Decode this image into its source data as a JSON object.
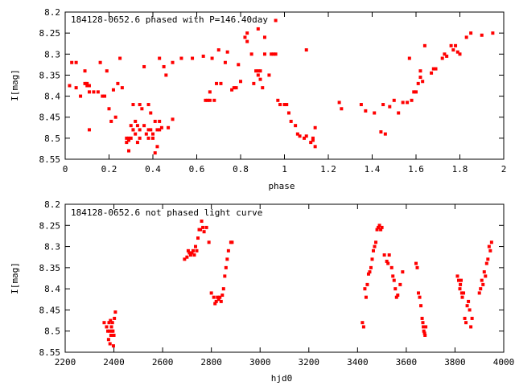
{
  "chart_data": [
    {
      "type": "scatter",
      "title": "184128-0652.6 phased with P=146.40day",
      "xlabel": "phase",
      "ylabel": "I[mag]",
      "xlim": [
        0,
        2
      ],
      "ylim": [
        8.55,
        8.2
      ],
      "y_inverted": true,
      "grid": false,
      "marker_color": "#ff0000",
      "xticks": [
        "0",
        "0.2",
        "0.4",
        "0.6",
        "0.8",
        "1",
        "1.2",
        "1.4",
        "1.6",
        "1.8",
        "2"
      ],
      "yticks": [
        "8.2",
        "8.25",
        "8.3",
        "8.35",
        "8.4",
        "8.45",
        "8.5",
        "8.55"
      ],
      "points": [
        [
          0.02,
          8.375
        ],
        [
          0.03,
          8.32
        ],
        [
          0.05,
          8.38
        ],
        [
          0.05,
          8.32
        ],
        [
          0.07,
          8.4
        ],
        [
          0.09,
          8.34
        ],
        [
          0.09,
          8.37
        ],
        [
          0.1,
          8.375
        ],
        [
          0.1,
          8.37
        ],
        [
          0.11,
          8.39
        ],
        [
          0.11,
          8.375
        ],
        [
          0.11,
          8.48
        ],
        [
          0.13,
          8.39
        ],
        [
          0.15,
          8.39
        ],
        [
          0.16,
          8.32
        ],
        [
          0.17,
          8.4
        ],
        [
          0.18,
          8.4
        ],
        [
          0.19,
          8.34
        ],
        [
          0.2,
          8.43
        ],
        [
          0.21,
          8.46
        ],
        [
          0.22,
          8.385
        ],
        [
          0.23,
          8.45
        ],
        [
          0.24,
          8.37
        ],
        [
          0.25,
          8.31
        ],
        [
          0.26,
          8.38
        ],
        [
          0.28,
          8.5
        ],
        [
          0.28,
          8.51
        ],
        [
          0.29,
          8.53
        ],
        [
          0.29,
          8.5
        ],
        [
          0.29,
          8.505
        ],
        [
          0.3,
          8.5
        ],
        [
          0.3,
          8.47
        ],
        [
          0.31,
          8.48
        ],
        [
          0.31,
          8.48
        ],
        [
          0.31,
          8.42
        ],
        [
          0.32,
          8.46
        ],
        [
          0.32,
          8.49
        ],
        [
          0.33,
          8.51
        ],
        [
          0.33,
          8.47
        ],
        [
          0.34,
          8.48
        ],
        [
          0.34,
          8.5
        ],
        [
          0.34,
          8.42
        ],
        [
          0.35,
          8.43
        ],
        [
          0.36,
          8.33
        ],
        [
          0.36,
          8.47
        ],
        [
          0.37,
          8.49
        ],
        [
          0.38,
          8.5
        ],
        [
          0.38,
          8.48
        ],
        [
          0.38,
          8.42
        ],
        [
          0.39,
          8.44
        ],
        [
          0.39,
          8.48
        ],
        [
          0.4,
          8.5
        ],
        [
          0.4,
          8.49
        ],
        [
          0.41,
          8.46
        ],
        [
          0.41,
          8.535
        ],
        [
          0.42,
          8.48
        ],
        [
          0.42,
          8.52
        ],
        [
          0.43,
          8.48
        ],
        [
          0.43,
          8.46
        ],
        [
          0.44,
          8.475
        ],
        [
          0.43,
          8.31
        ],
        [
          0.45,
          8.33
        ],
        [
          0.46,
          8.35
        ],
        [
          0.47,
          8.475
        ],
        [
          0.49,
          8.32
        ],
        [
          0.49,
          8.455
        ],
        [
          0.53,
          8.31
        ],
        [
          0.58,
          8.31
        ],
        [
          0.63,
          8.305
        ],
        [
          0.64,
          8.41
        ],
        [
          0.65,
          8.41
        ],
        [
          0.66,
          8.41
        ],
        [
          0.66,
          8.39
        ],
        [
          0.67,
          8.31
        ],
        [
          0.68,
          8.41
        ],
        [
          0.69,
          8.37
        ],
        [
          0.7,
          8.29
        ],
        [
          0.71,
          8.37
        ],
        [
          0.73,
          8.32
        ],
        [
          0.74,
          8.295
        ],
        [
          0.76,
          8.385
        ],
        [
          0.77,
          8.38
        ],
        [
          0.78,
          8.38
        ],
        [
          0.79,
          8.325
        ],
        [
          0.8,
          8.365
        ],
        [
          0.82,
          8.26
        ],
        [
          0.83,
          8.25
        ],
        [
          0.83,
          8.27
        ],
        [
          0.85,
          8.3
        ],
        [
          0.86,
          8.37
        ],
        [
          0.87,
          8.34
        ],
        [
          0.88,
          8.24
        ],
        [
          0.88,
          8.34
        ],
        [
          0.88,
          8.35
        ],
        [
          0.89,
          8.36
        ],
        [
          0.89,
          8.34
        ],
        [
          0.9,
          8.38
        ],
        [
          0.91,
          8.3
        ],
        [
          0.91,
          8.26
        ],
        [
          0.93,
          8.35
        ],
        [
          0.94,
          8.3
        ],
        [
          0.95,
          8.3
        ],
        [
          0.96,
          8.22
        ],
        [
          0.96,
          8.3
        ],
        [
          0.97,
          8.41
        ],
        [
          0.98,
          8.42
        ],
        [
          1.0,
          8.42
        ],
        [
          1.01,
          8.42
        ],
        [
          1.02,
          8.44
        ],
        [
          1.03,
          8.46
        ],
        [
          1.05,
          8.47
        ],
        [
          1.06,
          8.49
        ],
        [
          1.07,
          8.495
        ],
        [
          1.09,
          8.5
        ],
        [
          1.1,
          8.29
        ],
        [
          1.1,
          8.495
        ],
        [
          1.12,
          8.51
        ],
        [
          1.13,
          8.5
        ],
        [
          1.13,
          8.505
        ],
        [
          1.14,
          8.475
        ],
        [
          1.14,
          8.52
        ],
        [
          1.25,
          8.415
        ],
        [
          1.26,
          8.43
        ],
        [
          1.35,
          8.42
        ],
        [
          1.37,
          8.435
        ],
        [
          1.41,
          8.44
        ],
        [
          1.44,
          8.485
        ],
        [
          1.45,
          8.42
        ],
        [
          1.46,
          8.49
        ],
        [
          1.48,
          8.425
        ],
        [
          1.5,
          8.41
        ],
        [
          1.52,
          8.44
        ],
        [
          1.54,
          8.415
        ],
        [
          1.56,
          8.415
        ],
        [
          1.57,
          8.31
        ],
        [
          1.58,
          8.41
        ],
        [
          1.59,
          8.39
        ],
        [
          1.6,
          8.39
        ],
        [
          1.61,
          8.37
        ],
        [
          1.62,
          8.355
        ],
        [
          1.62,
          8.34
        ],
        [
          1.63,
          8.365
        ],
        [
          1.64,
          8.28
        ],
        [
          1.67,
          8.345
        ],
        [
          1.68,
          8.335
        ],
        [
          1.69,
          8.335
        ],
        [
          1.72,
          8.31
        ],
        [
          1.73,
          8.3
        ],
        [
          1.74,
          8.305
        ],
        [
          1.76,
          8.28
        ],
        [
          1.77,
          8.29
        ],
        [
          1.78,
          8.28
        ],
        [
          1.79,
          8.295
        ],
        [
          1.8,
          8.3
        ],
        [
          1.83,
          8.26
        ],
        [
          1.85,
          8.25
        ],
        [
          1.9,
          8.255
        ],
        [
          1.95,
          8.25
        ]
      ]
    },
    {
      "type": "scatter",
      "title": "184128-0652.6 not phased light curve",
      "xlabel": "hjd0",
      "ylabel": "I[mag]",
      "xlim": [
        2200,
        4000
      ],
      "ylim": [
        8.55,
        8.2
      ],
      "y_inverted": true,
      "grid": false,
      "marker_color": "#ff0000",
      "xticks": [
        "2200",
        "2400",
        "2600",
        "2800",
        "3000",
        "3200",
        "3400",
        "3600",
        "3800",
        "4000"
      ],
      "yticks": [
        "8.2",
        "8.25",
        "8.3",
        "8.35",
        "8.4",
        "8.45",
        "8.5",
        "8.55"
      ],
      "points": [
        [
          2360,
          8.48
        ],
        [
          2370,
          8.49
        ],
        [
          2375,
          8.5
        ],
        [
          2378,
          8.52
        ],
        [
          2380,
          8.48
        ],
        [
          2382,
          8.5
        ],
        [
          2384,
          8.53
        ],
        [
          2386,
          8.475
        ],
        [
          2388,
          8.51
        ],
        [
          2390,
          8.49
        ],
        [
          2392,
          8.5
        ],
        [
          2394,
          8.48
        ],
        [
          2396,
          8.5
        ],
        [
          2398,
          8.535
        ],
        [
          2400,
          8.51
        ],
        [
          2402,
          8.47
        ],
        [
          2406,
          8.455
        ],
        [
          2690,
          8.33
        ],
        [
          2700,
          8.325
        ],
        [
          2705,
          8.31
        ],
        [
          2710,
          8.315
        ],
        [
          2715,
          8.32
        ],
        [
          2720,
          8.315
        ],
        [
          2725,
          8.31
        ],
        [
          2730,
          8.32
        ],
        [
          2735,
          8.3
        ],
        [
          2740,
          8.31
        ],
        [
          2745,
          8.28
        ],
        [
          2750,
          8.26
        ],
        [
          2755,
          8.26
        ],
        [
          2760,
          8.24
        ],
        [
          2765,
          8.255
        ],
        [
          2770,
          8.265
        ],
        [
          2780,
          8.255
        ],
        [
          2790,
          8.29
        ],
        [
          2800,
          8.41
        ],
        [
          2810,
          8.42
        ],
        [
          2815,
          8.435
        ],
        [
          2820,
          8.43
        ],
        [
          2825,
          8.42
        ],
        [
          2830,
          8.425
        ],
        [
          2835,
          8.42
        ],
        [
          2840,
          8.43
        ],
        [
          2845,
          8.415
        ],
        [
          2850,
          8.4
        ],
        [
          2855,
          8.37
        ],
        [
          2860,
          8.35
        ],
        [
          2865,
          8.33
        ],
        [
          2870,
          8.31
        ],
        [
          2880,
          8.29
        ],
        [
          2885,
          8.29
        ],
        [
          3420,
          8.48
        ],
        [
          3425,
          8.49
        ],
        [
          3430,
          8.4
        ],
        [
          3435,
          8.42
        ],
        [
          3440,
          8.39
        ],
        [
          3445,
          8.365
        ],
        [
          3450,
          8.36
        ],
        [
          3455,
          8.35
        ],
        [
          3460,
          8.33
        ],
        [
          3465,
          8.31
        ],
        [
          3470,
          8.3
        ],
        [
          3475,
          8.29
        ],
        [
          3480,
          8.26
        ],
        [
          3485,
          8.255
        ],
        [
          3490,
          8.25
        ],
        [
          3495,
          8.26
        ],
        [
          3500,
          8.255
        ],
        [
          3510,
          8.32
        ],
        [
          3520,
          8.335
        ],
        [
          3525,
          8.34
        ],
        [
          3530,
          8.32
        ],
        [
          3540,
          8.35
        ],
        [
          3545,
          8.37
        ],
        [
          3550,
          8.38
        ],
        [
          3555,
          8.4
        ],
        [
          3560,
          8.42
        ],
        [
          3565,
          8.415
        ],
        [
          3575,
          8.39
        ],
        [
          3585,
          8.36
        ],
        [
          3640,
          8.34
        ],
        [
          3645,
          8.35
        ],
        [
          3650,
          8.41
        ],
        [
          3655,
          8.42
        ],
        [
          3660,
          8.44
        ],
        [
          3665,
          8.47
        ],
        [
          3668,
          8.48
        ],
        [
          3670,
          8.49
        ],
        [
          3672,
          8.5
        ],
        [
          3675,
          8.505
        ],
        [
          3677,
          8.51
        ],
        [
          3680,
          8.49
        ],
        [
          3810,
          8.37
        ],
        [
          3815,
          8.38
        ],
        [
          3820,
          8.4
        ],
        [
          3822,
          8.39
        ],
        [
          3825,
          8.38
        ],
        [
          3828,
          8.41
        ],
        [
          3830,
          8.42
        ],
        [
          3835,
          8.41
        ],
        [
          3840,
          8.47
        ],
        [
          3845,
          8.48
        ],
        [
          3850,
          8.44
        ],
        [
          3855,
          8.43
        ],
        [
          3860,
          8.45
        ],
        [
          3865,
          8.49
        ],
        [
          3870,
          8.47
        ],
        [
          3900,
          8.41
        ],
        [
          3905,
          8.4
        ],
        [
          3910,
          8.38
        ],
        [
          3915,
          8.39
        ],
        [
          3920,
          8.36
        ],
        [
          3925,
          8.37
        ],
        [
          3930,
          8.34
        ],
        [
          3935,
          8.33
        ],
        [
          3940,
          8.3
        ],
        [
          3945,
          8.31
        ],
        [
          3950,
          8.29
        ]
      ]
    }
  ]
}
